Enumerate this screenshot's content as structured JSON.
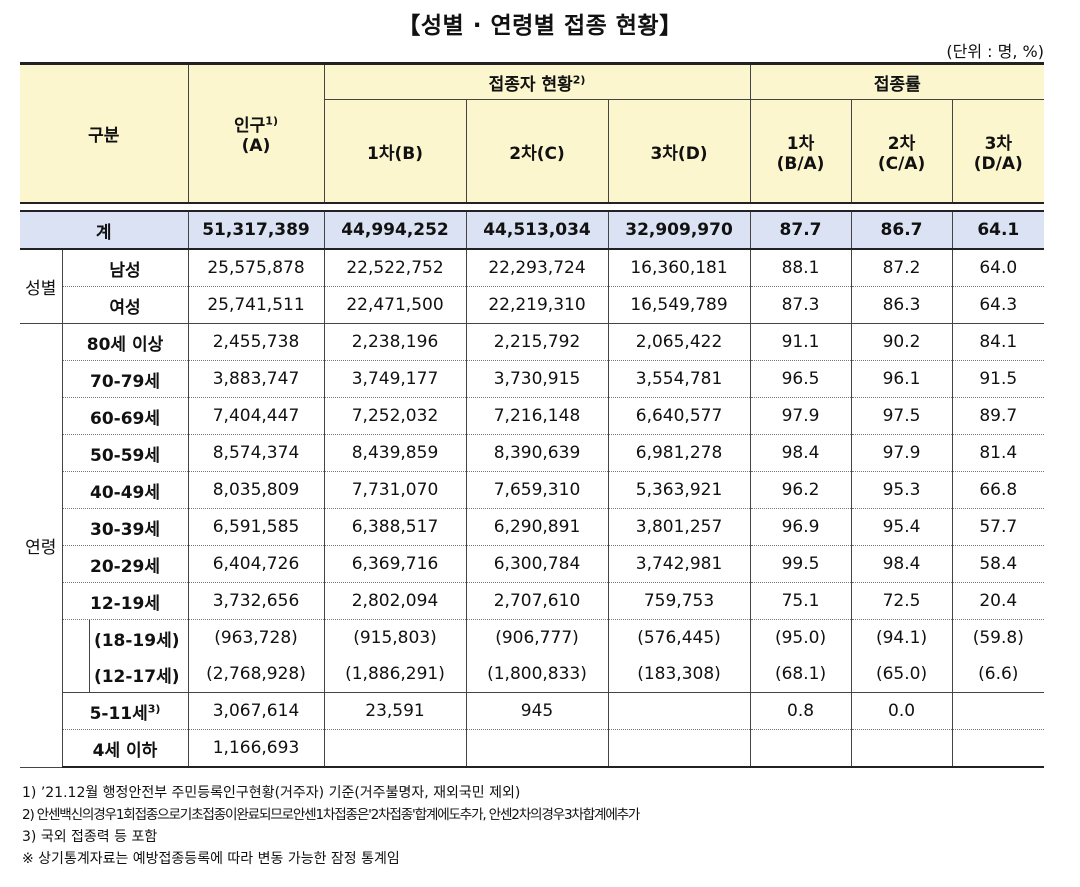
{
  "title": "【성별 · 연령별 접종 현황】",
  "unit": "(단위 : 명, %)",
  "header": {
    "category": "구분",
    "population": "인구",
    "population_sup": "1)",
    "population_sub": "(A)",
    "vaccinated": "접종자 현황",
    "vaccinated_sup": "2)",
    "rate": "접종률",
    "dose1": "1차(B)",
    "dose2": "2차(C)",
    "dose3": "3차(D)",
    "rate1_a": "1차",
    "rate1_b": "(B/A)",
    "rate2_a": "2차",
    "rate2_b": "(C/A)",
    "rate3_a": "3차",
    "rate3_b": "(D/A)"
  },
  "total": {
    "label": "계",
    "pop": "51,317,389",
    "d1": "44,994,252",
    "d2": "44,513,034",
    "d3": "32,909,970",
    "r1": "87.7",
    "r2": "86.7",
    "r3": "64.1"
  },
  "groups": {
    "sex": "성별",
    "age": "연령"
  },
  "sex_rows": [
    {
      "label": "남성",
      "pop": "25,575,878",
      "d1": "22,522,752",
      "d2": "22,293,724",
      "d3": "16,360,181",
      "r1": "88.1",
      "r2": "87.2",
      "r3": "64.0"
    },
    {
      "label": "여성",
      "pop": "25,741,511",
      "d1": "22,471,500",
      "d2": "22,219,310",
      "d3": "16,549,789",
      "r1": "87.3",
      "r2": "86.3",
      "r3": "64.3"
    }
  ],
  "age_rows": [
    {
      "label": "80세 이상",
      "pop": "2,455,738",
      "d1": "2,238,196",
      "d2": "2,215,792",
      "d3": "2,065,422",
      "r1": "91.1",
      "r2": "90.2",
      "r3": "84.1"
    },
    {
      "label": "70-79세",
      "pop": "3,883,747",
      "d1": "3,749,177",
      "d2": "3,730,915",
      "d3": "3,554,781",
      "r1": "96.5",
      "r2": "96.1",
      "r3": "91.5"
    },
    {
      "label": "60-69세",
      "pop": "7,404,447",
      "d1": "7,252,032",
      "d2": "7,216,148",
      "d3": "6,640,577",
      "r1": "97.9",
      "r2": "97.5",
      "r3": "89.7"
    },
    {
      "label": "50-59세",
      "pop": "8,574,374",
      "d1": "8,439,859",
      "d2": "8,390,639",
      "d3": "6,981,278",
      "r1": "98.4",
      "r2": "97.9",
      "r3": "81.4"
    },
    {
      "label": "40-49세",
      "pop": "8,035,809",
      "d1": "7,731,070",
      "d2": "7,659,310",
      "d3": "5,363,921",
      "r1": "96.2",
      "r2": "95.3",
      "r3": "66.8"
    },
    {
      "label": "30-39세",
      "pop": "6,591,585",
      "d1": "6,388,517",
      "d2": "6,290,891",
      "d3": "3,801,257",
      "r1": "96.9",
      "r2": "95.4",
      "r3": "57.7"
    },
    {
      "label": "20-29세",
      "pop": "6,404,726",
      "d1": "6,369,716",
      "d2": "6,300,784",
      "d3": "3,742,981",
      "r1": "99.5",
      "r2": "98.4",
      "r3": "58.4"
    },
    {
      "label": "12-19세",
      "pop": "3,732,656",
      "d1": "2,802,094",
      "d2": "2,707,610",
      "d3": "759,753",
      "r1": "75.1",
      "r2": "72.5",
      "r3": "20.4"
    }
  ],
  "sub_rows": [
    {
      "label": "(18-19세)",
      "pop": "(963,728)",
      "d1": "(915,803)",
      "d2": "(906,777)",
      "d3": "(576,445)",
      "r1": "(95.0)",
      "r2": "(94.1)",
      "r3": "(59.8)"
    },
    {
      "label": "(12-17세)",
      "pop": "(2,768,928)",
      "d1": "(1,886,291)",
      "d2": "(1,800,833)",
      "d3": "(183,308)",
      "r1": "(68.1)",
      "r2": "(65.0)",
      "r3": "(6.6)"
    }
  ],
  "child_rows": [
    {
      "label": "5-11세",
      "sup": "3)",
      "pop": "3,067,614",
      "d1": "23,591",
      "d2": "945",
      "d3": "",
      "r1": "0.8",
      "r2": "0.0",
      "r3": ""
    },
    {
      "label": "4세 이하",
      "sup": "",
      "pop": "1,166,693",
      "d1": "",
      "d2": "",
      "d3": "",
      "r1": "",
      "r2": "",
      "r3": ""
    }
  ],
  "notes": [
    "1) ’21.12월 행정안전부 주민등록인구현황(거주자) 기준(거주불명자, 재외국민 제외)",
    "2) 안센백신의경우1회접종으로기초접종이완료되므로안센1차접종은'2차접종'합계에도추가, 안센2차의경우3차합계에추가",
    "3) 국외 접종력 등 포함",
    "※ 상기통계자료는 예방접종등록에 따라 변동 가능한 잠정 통계임"
  ]
}
